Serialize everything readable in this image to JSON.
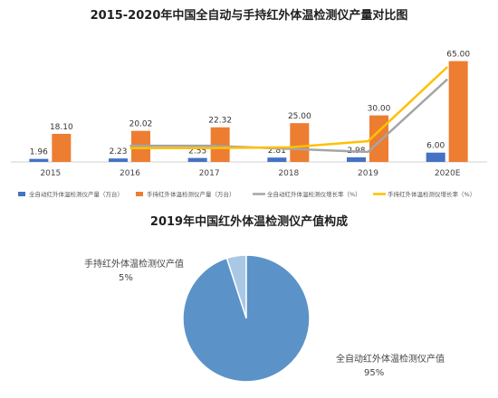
{
  "chart_data": [
    {
      "type": "bar",
      "title": "2015-2020年中国全自动与手持红外体温检测仪产量对比图",
      "categories": [
        "2015",
        "2016",
        "2017",
        "2018",
        "2019",
        "2020E"
      ],
      "series": [
        {
          "name": "全自动红外体温检测仪产量（万台）",
          "type": "bar",
          "color": "#4472C4",
          "values": [
            1.96,
            2.23,
            2.55,
            2.81,
            2.98,
            6.0
          ],
          "labels": [
            "1.96",
            "2.23",
            "2.55",
            "2.81",
            "2.98",
            "6.00"
          ]
        },
        {
          "name": "手持红外体温检测仪产量（万台）",
          "type": "bar",
          "color": "#ED7D31",
          "values": [
            18.1,
            20.02,
            22.32,
            25.0,
            30.0,
            65.0
          ],
          "labels": [
            "18.10",
            "20.02",
            "22.32",
            "25.00",
            "30.00",
            "65.00"
          ]
        },
        {
          "name": "全自动红外体温检测仪增长率（%）",
          "type": "line",
          "color": "#A5A5A5",
          "values": [
            null,
            14,
            14,
            10,
            6,
            101
          ]
        },
        {
          "name": "手持红外体温检测仪增长率（%）",
          "type": "line",
          "color": "#FFC000",
          "values": [
            null,
            11,
            11,
            12,
            20,
            117
          ]
        }
      ],
      "ylim": [
        0,
        70
      ],
      "legend": "bottom"
    },
    {
      "type": "pie",
      "title": "2019年中国红外体温检测仪产值构成",
      "slices": [
        {
          "name": "全自动红外体温检测仪产值",
          "value": 95,
          "label": "95%",
          "color": "#5B93C8"
        },
        {
          "name": "手持红外体温检测仪产值",
          "value": 5,
          "label": "5%",
          "color": "#A9C8E6"
        }
      ]
    }
  ]
}
